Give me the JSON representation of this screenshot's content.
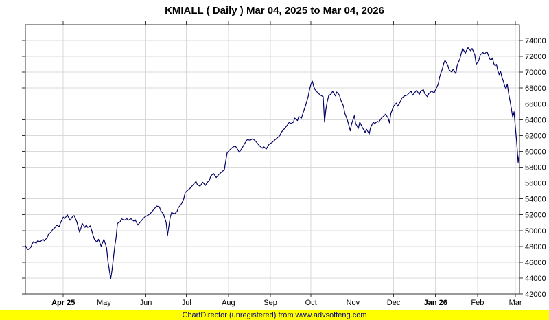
{
  "title": "KMIALL ( Daily ) Mar 04, 2025 to Mar 04, 2026",
  "footer": {
    "text": "ChartDirector (unregistered) from www.advsofteng.com"
  },
  "colors": {
    "line": "#000066",
    "grid": "#d9d9d9",
    "axis": "#333333",
    "label": "#000000",
    "title": "#000000",
    "footer_bg": "#ffff00",
    "footer_text": "#000080",
    "background": "#ffffff"
  },
  "chart_data": {
    "type": "line",
    "title": "KMIALL ( Daily ) Mar 04, 2025 to Mar 04, 2026",
    "xlabel": "",
    "ylabel": "",
    "x_unit": "days since Mar 04, 2025",
    "xlim": [
      0,
      365
    ],
    "ylim": [
      42000,
      76000
    ],
    "grid": true,
    "y_axis_side": "right",
    "y_ticks": [
      42000,
      44000,
      46000,
      48000,
      50000,
      52000,
      54000,
      56000,
      58000,
      60000,
      62000,
      64000,
      66000,
      68000,
      70000,
      72000,
      74000
    ],
    "x_ticks": [
      {
        "label": "Apr 25",
        "day": 28,
        "bold": true
      },
      {
        "label": "May",
        "day": 58,
        "bold": false
      },
      {
        "label": "Jun",
        "day": 89,
        "bold": false
      },
      {
        "label": "Jul",
        "day": 119,
        "bold": false
      },
      {
        "label": "Aug",
        "day": 150,
        "bold": false
      },
      {
        "label": "Sep",
        "day": 181,
        "bold": false
      },
      {
        "label": "Oct",
        "day": 211,
        "bold": false
      },
      {
        "label": "Nov",
        "day": 242,
        "bold": false
      },
      {
        "label": "Dec",
        "day": 272,
        "bold": false
      },
      {
        "label": "Jan 26",
        "day": 303,
        "bold": true
      },
      {
        "label": "Feb",
        "day": 334,
        "bold": false
      },
      {
        "label": "Mar",
        "day": 362,
        "bold": false
      }
    ],
    "series_name": "KMIALL",
    "points": [
      [
        0,
        48100
      ],
      [
        1,
        47800
      ],
      [
        2,
        47600
      ],
      [
        4,
        47900
      ],
      [
        5,
        48300
      ],
      [
        6,
        48600
      ],
      [
        8,
        48400
      ],
      [
        9,
        48700
      ],
      [
        11,
        48600
      ],
      [
        13,
        48900
      ],
      [
        14,
        48700
      ],
      [
        16,
        49100
      ],
      [
        17,
        49500
      ],
      [
        19,
        49800
      ],
      [
        20,
        50100
      ],
      [
        22,
        50400
      ],
      [
        23,
        50700
      ],
      [
        25,
        50500
      ],
      [
        26,
        51000
      ],
      [
        28,
        51700
      ],
      [
        29,
        51500
      ],
      [
        31,
        52000
      ],
      [
        32,
        51600
      ],
      [
        33,
        51300
      ],
      [
        35,
        51800
      ],
      [
        36,
        51900
      ],
      [
        38,
        51100
      ],
      [
        40,
        49800
      ],
      [
        41,
        50300
      ],
      [
        42,
        50900
      ],
      [
        44,
        50400
      ],
      [
        45,
        50700
      ],
      [
        46,
        50400
      ],
      [
        48,
        50600
      ],
      [
        50,
        49400
      ],
      [
        51,
        48900
      ],
      [
        53,
        48500
      ],
      [
        54,
        48900
      ],
      [
        56,
        48000
      ],
      [
        58,
        48900
      ],
      [
        60,
        47800
      ],
      [
        61,
        46100
      ],
      [
        63,
        43900
      ],
      [
        64,
        45000
      ],
      [
        65,
        46500
      ],
      [
        66,
        48000
      ],
      [
        67,
        49100
      ],
      [
        68,
        50900
      ],
      [
        70,
        51100
      ],
      [
        71,
        51500
      ],
      [
        73,
        51300
      ],
      [
        75,
        51500
      ],
      [
        76,
        51300
      ],
      [
        78,
        51500
      ],
      [
        80,
        51200
      ],
      [
        81,
        51400
      ],
      [
        83,
        50700
      ],
      [
        85,
        51100
      ],
      [
        86,
        51300
      ],
      [
        88,
        51700
      ],
      [
        90,
        51900
      ],
      [
        92,
        52100
      ],
      [
        93,
        52300
      ],
      [
        95,
        52700
      ],
      [
        97,
        53100
      ],
      [
        99,
        53000
      ],
      [
        100,
        52500
      ],
      [
        102,
        52100
      ],
      [
        104,
        51000
      ],
      [
        105,
        49400
      ],
      [
        107,
        51700
      ],
      [
        108,
        52300
      ],
      [
        110,
        52100
      ],
      [
        112,
        52400
      ],
      [
        113,
        52900
      ],
      [
        115,
        53300
      ],
      [
        117,
        54000
      ],
      [
        118,
        54800
      ],
      [
        120,
        55100
      ],
      [
        122,
        55400
      ],
      [
        124,
        55800
      ],
      [
        126,
        56200
      ],
      [
        127,
        55800
      ],
      [
        129,
        55600
      ],
      [
        131,
        56100
      ],
      [
        133,
        55700
      ],
      [
        134,
        56000
      ],
      [
        136,
        56400
      ],
      [
        137,
        56900
      ],
      [
        139,
        57200
      ],
      [
        141,
        56700
      ],
      [
        143,
        57100
      ],
      [
        145,
        57400
      ],
      [
        147,
        57700
      ],
      [
        148,
        58800
      ],
      [
        149,
        59800
      ],
      [
        151,
        60200
      ],
      [
        153,
        60500
      ],
      [
        155,
        60700
      ],
      [
        157,
        60200
      ],
      [
        158,
        59900
      ],
      [
        160,
        60400
      ],
      [
        162,
        61000
      ],
      [
        164,
        61500
      ],
      [
        166,
        61400
      ],
      [
        168,
        61600
      ],
      [
        170,
        61300
      ],
      [
        171,
        61100
      ],
      [
        173,
        60700
      ],
      [
        175,
        60400
      ],
      [
        176,
        60600
      ],
      [
        178,
        60300
      ],
      [
        180,
        60900
      ],
      [
        182,
        61100
      ],
      [
        184,
        61400
      ],
      [
        186,
        61700
      ],
      [
        188,
        62000
      ],
      [
        189,
        62400
      ],
      [
        191,
        62800
      ],
      [
        193,
        63200
      ],
      [
        195,
        63700
      ],
      [
        196,
        63500
      ],
      [
        198,
        63700
      ],
      [
        199,
        64200
      ],
      [
        201,
        63900
      ],
      [
        202,
        64400
      ],
      [
        204,
        64200
      ],
      [
        205,
        64800
      ],
      [
        207,
        65800
      ],
      [
        208,
        66400
      ],
      [
        209,
        67000
      ],
      [
        210,
        67900
      ],
      [
        211,
        68500
      ],
      [
        212,
        68870
      ],
      [
        213,
        68200
      ],
      [
        214,
        67800
      ],
      [
        216,
        67400
      ],
      [
        218,
        67100
      ],
      [
        220,
        66900
      ],
      [
        221,
        63700
      ],
      [
        222,
        65300
      ],
      [
        223,
        66300
      ],
      [
        224,
        67000
      ],
      [
        226,
        67300
      ],
      [
        227,
        67600
      ],
      [
        229,
        67000
      ],
      [
        230,
        67500
      ],
      [
        232,
        67100
      ],
      [
        233,
        66500
      ],
      [
        235,
        65700
      ],
      [
        236,
        64800
      ],
      [
        238,
        63900
      ],
      [
        240,
        62600
      ],
      [
        241,
        63500
      ],
      [
        243,
        64500
      ],
      [
        244,
        63500
      ],
      [
        246,
        62900
      ],
      [
        247,
        63700
      ],
      [
        249,
        63000
      ],
      [
        251,
        62400
      ],
      [
        252,
        62800
      ],
      [
        254,
        62200
      ],
      [
        255,
        63000
      ],
      [
        257,
        63700
      ],
      [
        258,
        63500
      ],
      [
        260,
        63800
      ],
      [
        261,
        63700
      ],
      [
        263,
        64200
      ],
      [
        265,
        64500
      ],
      [
        266,
        64700
      ],
      [
        268,
        64200
      ],
      [
        269,
        63600
      ],
      [
        270,
        64800
      ],
      [
        272,
        65700
      ],
      [
        274,
        66100
      ],
      [
        275,
        65700
      ],
      [
        277,
        66300
      ],
      [
        278,
        66700
      ],
      [
        280,
        67000
      ],
      [
        282,
        67100
      ],
      [
        283,
        67300
      ],
      [
        285,
        67600
      ],
      [
        286,
        67100
      ],
      [
        288,
        67500
      ],
      [
        289,
        67700
      ],
      [
        291,
        67200
      ],
      [
        292,
        67600
      ],
      [
        294,
        67800
      ],
      [
        295,
        67300
      ],
      [
        297,
        66900
      ],
      [
        298,
        67300
      ],
      [
        300,
        67600
      ],
      [
        302,
        67400
      ],
      [
        303,
        67800
      ],
      [
        305,
        68500
      ],
      [
        306,
        69400
      ],
      [
        308,
        70400
      ],
      [
        309,
        71100
      ],
      [
        310,
        71500
      ],
      [
        312,
        70900
      ],
      [
        313,
        70300
      ],
      [
        315,
        70000
      ],
      [
        316,
        70400
      ],
      [
        318,
        69800
      ],
      [
        319,
        70900
      ],
      [
        321,
        71700
      ],
      [
        322,
        72400
      ],
      [
        323,
        73000
      ],
      [
        325,
        72400
      ],
      [
        326,
        72800
      ],
      [
        327,
        73100
      ],
      [
        329,
        72700
      ],
      [
        330,
        73000
      ],
      [
        332,
        72200
      ],
      [
        333,
        71000
      ],
      [
        335,
        71500
      ],
      [
        336,
        72200
      ],
      [
        338,
        72500
      ],
      [
        339,
        72300
      ],
      [
        341,
        72600
      ],
      [
        343,
        71700
      ],
      [
        344,
        71500
      ],
      [
        345,
        71800
      ],
      [
        346,
        71100
      ],
      [
        347,
        70800
      ],
      [
        348,
        71000
      ],
      [
        349,
        70200
      ],
      [
        350,
        69700
      ],
      [
        351,
        70100
      ],
      [
        352,
        69400
      ],
      [
        353,
        68900
      ],
      [
        354,
        68300
      ],
      [
        355,
        67900
      ],
      [
        356,
        68500
      ],
      [
        357,
        67300
      ],
      [
        358,
        66400
      ],
      [
        359,
        65400
      ],
      [
        360,
        64300
      ],
      [
        361,
        65000
      ],
      [
        362,
        63000
      ],
      [
        363,
        61000
      ],
      [
        364,
        58600
      ],
      [
        365,
        59900
      ]
    ]
  }
}
